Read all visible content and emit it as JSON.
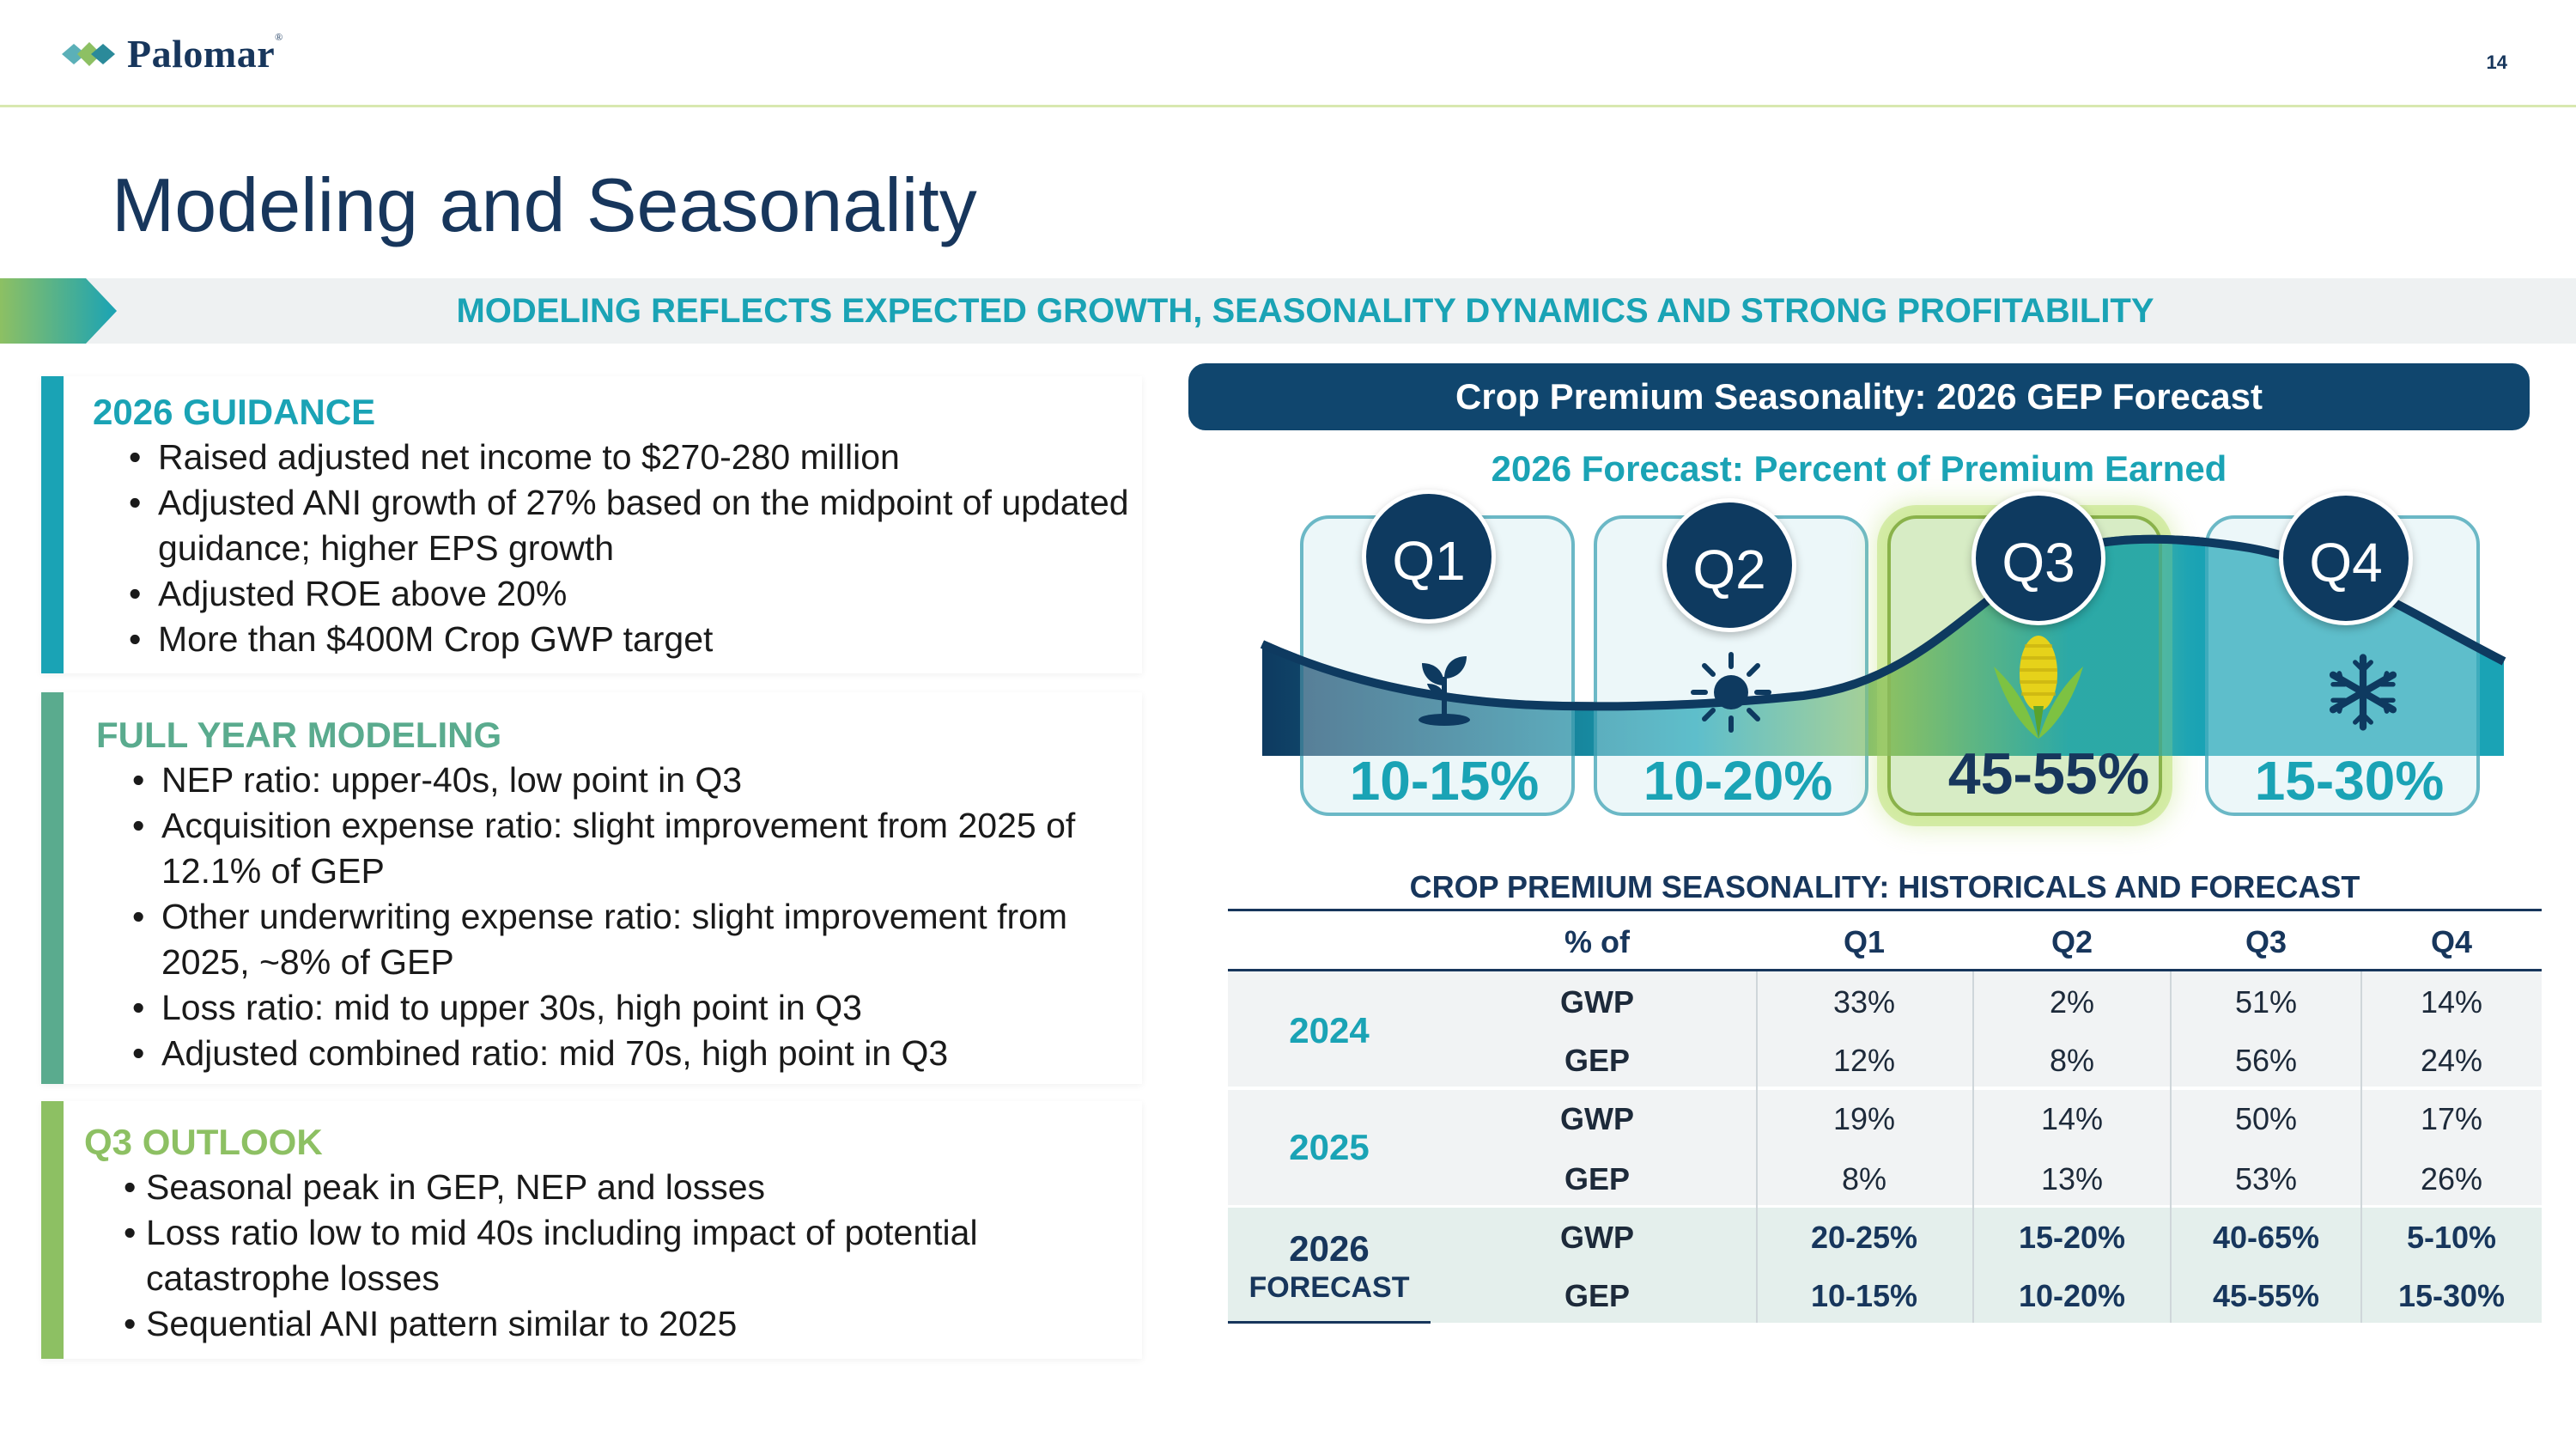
{
  "header": {
    "brand": "Palomar",
    "page_number": "14",
    "colors": {
      "navy": "#17365c",
      "teal": "#1aa3b5",
      "green": "#8dc063"
    }
  },
  "title": "Modeling and Seasonality",
  "banner": "MODELING REFLECTS EXPECTED GROWTH, SEASONALITY DYNAMICS AND STRONG PROFITABILITY",
  "panels": {
    "guidance": {
      "title": "2026 GUIDANCE",
      "items": [
        "Raised adjusted net income to $270-280 million",
        "Adjusted ANI growth of 27% based on the midpoint of updated guidance; higher EPS growth",
        "Adjusted ROE above 20%",
        "More than $400M Crop GWP target"
      ]
    },
    "modeling": {
      "title": "FULL YEAR MODELING",
      "items": [
        "NEP ratio: upper-40s, low point in Q3",
        "Acquisition expense ratio: slight improvement from 2025 of 12.1% of GEP",
        "Other underwriting expense ratio: slight improvement from 2025, ~8% of GEP",
        "Loss ratio: mid to upper 30s, high point in Q3",
        "Adjusted combined ratio: mid 70s, high point in Q3"
      ]
    },
    "outlook": {
      "title": "Q3 OUTLOOK",
      "items": [
        "Seasonal peak in GEP, NEP and losses",
        "Loss ratio low to mid 40s including impact of potential catastrophe losses",
        "Sequential ANI pattern similar to 2025"
      ]
    }
  },
  "seasonality": {
    "header": "Crop Premium Seasonality: 2026 GEP Forecast",
    "subtitle": "2026 Forecast: Percent of Premium Earned",
    "quarters": [
      {
        "label": "Q1",
        "pct": "10-15%",
        "icon": "sprout-icon"
      },
      {
        "label": "Q2",
        "pct": "10-20%",
        "icon": "sun-icon"
      },
      {
        "label": "Q3",
        "pct": "45-55%",
        "icon": "corn-icon"
      },
      {
        "label": "Q4",
        "pct": "15-30%",
        "icon": "snowflake-icon"
      }
    ]
  },
  "table": {
    "title": "CROP PREMIUM SEASONALITY: HISTORICALS AND FORECAST",
    "headers": [
      "% of",
      "Q1",
      "Q2",
      "Q3",
      "Q4"
    ],
    "groups": [
      {
        "year": "2024",
        "sub": "",
        "rows": [
          {
            "metric": "GWP",
            "values": [
              "33%",
              "2%",
              "51%",
              "14%"
            ]
          },
          {
            "metric": "GEP",
            "values": [
              "12%",
              "8%",
              "56%",
              "24%"
            ]
          }
        ]
      },
      {
        "year": "2025",
        "sub": "",
        "rows": [
          {
            "metric": "GWP",
            "values": [
              "19%",
              "14%",
              "50%",
              "17%"
            ]
          },
          {
            "metric": "GEP",
            "values": [
              "8%",
              "13%",
              "53%",
              "26%"
            ]
          }
        ]
      },
      {
        "year": "2026",
        "sub": "FORECAST",
        "rows": [
          {
            "metric": "GWP",
            "values": [
              "20-25%",
              "15-20%",
              "40-65%",
              "5-10%"
            ]
          },
          {
            "metric": "GEP",
            "values": [
              "10-15%",
              "10-20%",
              "45-55%",
              "15-30%"
            ]
          }
        ]
      }
    ]
  }
}
